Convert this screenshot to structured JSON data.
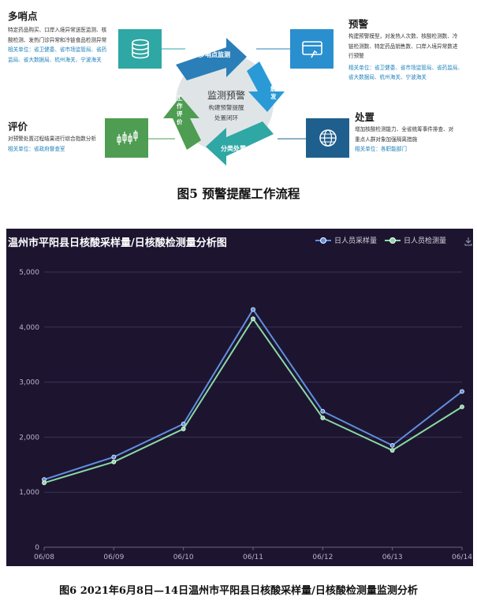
{
  "figure5": {
    "center_title": "监测预警",
    "center_sub1": "构建预警提醒",
    "center_sub2": "处置闭环",
    "arrows": {
      "top": "多哨点监测",
      "right": "预警触发",
      "bottom": "分类处置",
      "left": "工作评价"
    },
    "sections": {
      "sentinel": {
        "title": "多哨点",
        "lines": [
          "特定药品购买、口岸入境异常送医监测、核",
          "酸检测、发热门诊异常和冷链食品检测异常"
        ],
        "related": [
          "相关单位：省卫健委、省市场监管局、省药",
          "监局、省大数据局、杭州海关、宁波海关"
        ]
      },
      "warning": {
        "title": "预警",
        "lines": [
          "构建预警模型，对发热人次数、核酸检测数、冷",
          "链检测数、特定药品销售数、口岸入境异常数进",
          "行预警"
        ],
        "related": [
          "相关单位：省卫健委、省市场监管局、省药监局、",
          "省大数据局、杭州海关、宁波海关"
        ]
      },
      "evaluation": {
        "title": "评价",
        "lines": [
          "对预警处置过程结果进行综合指数分析"
        ],
        "related": [
          "相关单位：省政府督查室"
        ]
      },
      "disposal": {
        "title": "处置",
        "lines": [
          "增加核酸检测能力、全省统筹事件排查、对",
          "重点人群对象加强隔离措施"
        ],
        "related": [
          "相关单位：各职能部门"
        ]
      }
    },
    "icons": [
      "database-icon",
      "card-icon",
      "candlestick-icon",
      "globe-icon"
    ],
    "colors": {
      "blue": "#2a7fb9",
      "teal": "#2fa7a4",
      "green": "#4e9d52",
      "navy": "#1f5f8e"
    },
    "caption": "图5  预警提醒工作流程"
  },
  "figure6": {
    "caption": "图6  2021年6月8日—14日温州市平阳县日核酸采样量/日核酸检测量监测分析",
    "chart_data": {
      "type": "line",
      "title": "温州市平阳县日核酸采样量/日核酸检测量分析图",
      "categories": [
        "06/08",
        "06/09",
        "06/10",
        "06/11",
        "06/12",
        "06/13",
        "06/14"
      ],
      "series": [
        {
          "name": "日人员采样量",
          "color": "#5f8fe0",
          "values": [
            1230,
            1640,
            2240,
            4320,
            2470,
            1850,
            2830
          ]
        },
        {
          "name": "日人员检测量",
          "color": "#8ad9a4",
          "values": [
            1170,
            1550,
            2150,
            4150,
            2350,
            1760,
            2550
          ]
        }
      ],
      "yticks": [
        "0",
        "1,000",
        "2,000",
        "3,000",
        "4,000",
        "5,000"
      ],
      "ylim": [
        0,
        5000
      ],
      "grid": true,
      "legend": "top-right",
      "background": "#1d1530"
    }
  }
}
